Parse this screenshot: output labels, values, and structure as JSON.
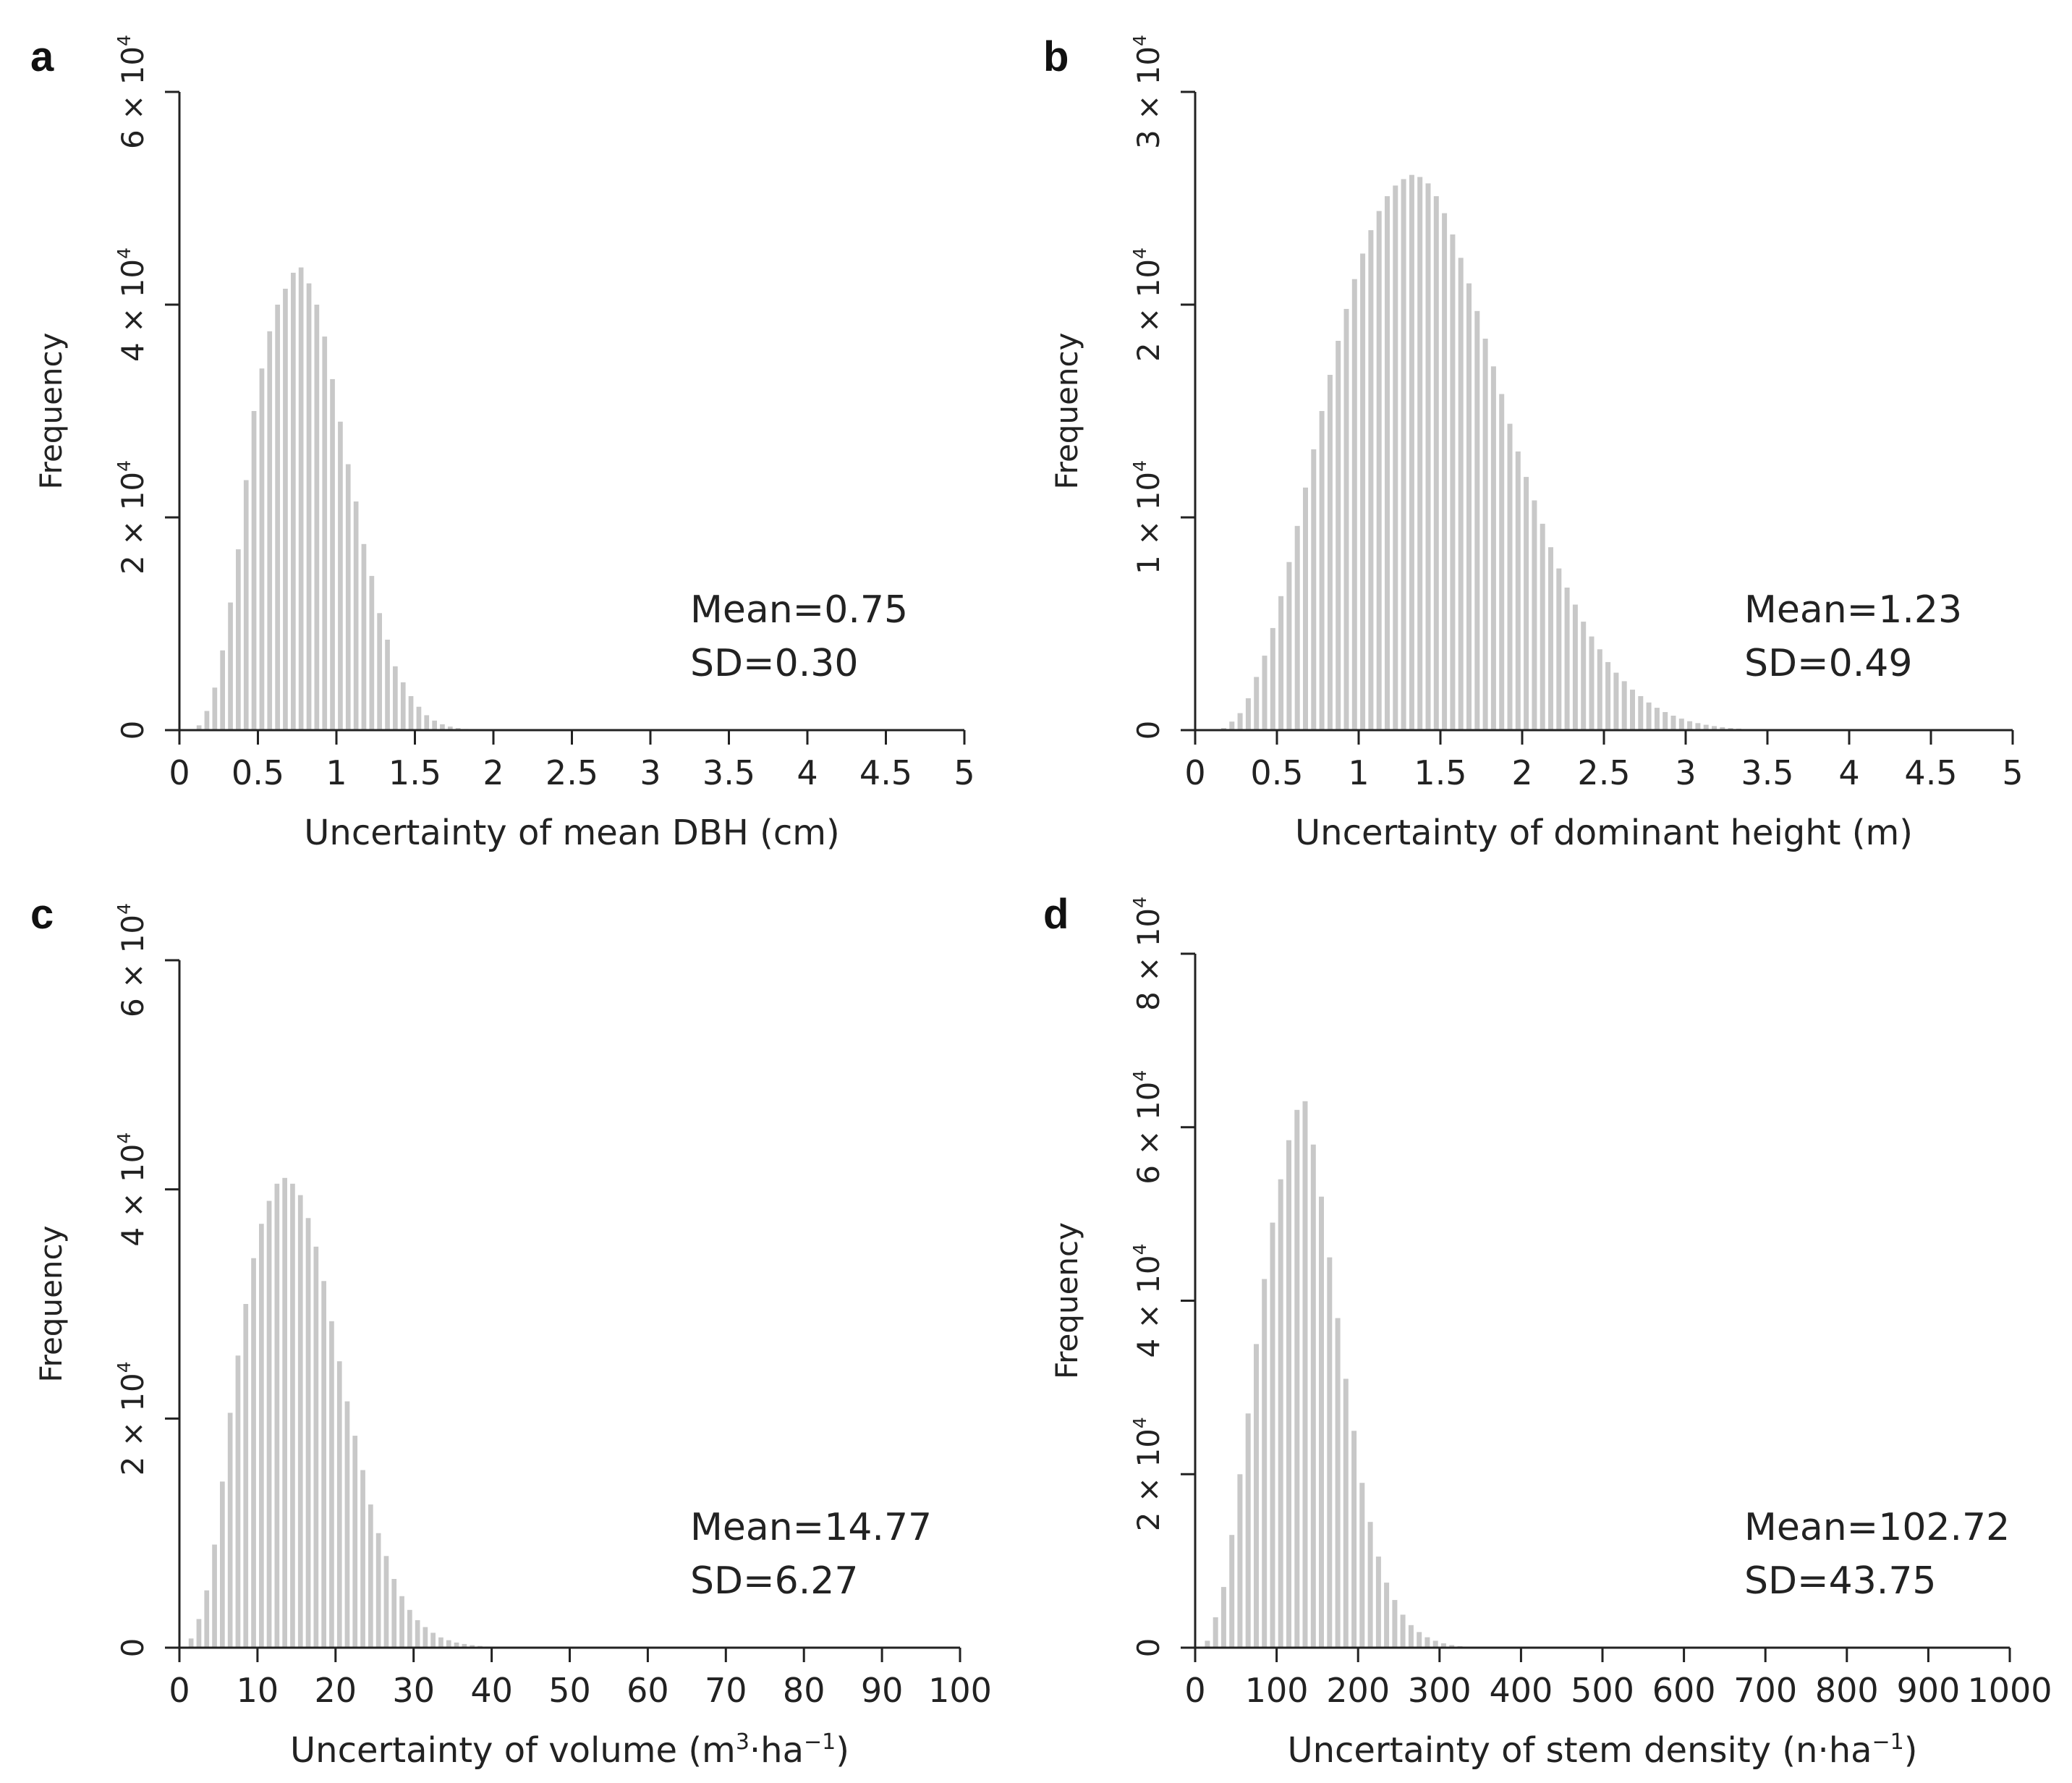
{
  "bar_color": "#c8c8c8",
  "axis_color": "#222222",
  "chart_data": [
    {
      "type": "bar",
      "panel": "a",
      "title": "",
      "xlabel": "Uncertainty of mean DBH (cm)",
      "ylabel": "Frequency",
      "xlim": [
        0,
        5
      ],
      "ylim": [
        0,
        60000
      ],
      "xticks": [
        "0",
        "0.5",
        "1",
        "1.5",
        "2",
        "2.5",
        "3",
        "3.5",
        "4",
        "4.5",
        "5"
      ],
      "xtick_values": [
        0,
        0.5,
        1,
        1.5,
        2,
        2.5,
        3,
        3.5,
        4,
        4.5,
        5
      ],
      "yticks": [
        {
          "value": 0,
          "base": "0",
          "exp": ""
        },
        {
          "value": 20000,
          "base": "2 × 10",
          "exp": "4"
        },
        {
          "value": 40000,
          "base": "4 × 10",
          "exp": "4"
        },
        {
          "value": 60000,
          "base": "6 × 10",
          "exp": "4"
        }
      ],
      "bin_start": 0.05,
      "bin_width": 0.05,
      "values": [
        80,
        450,
        1800,
        4000,
        7500,
        12000,
        17000,
        23500,
        30000,
        34000,
        37500,
        40000,
        41500,
        43000,
        43500,
        42000,
        40000,
        37000,
        33000,
        29000,
        25000,
        21500,
        17500,
        14500,
        11000,
        8500,
        6000,
        4500,
        3200,
        2200,
        1400,
        900,
        550,
        330,
        200,
        110,
        60,
        30,
        15,
        8
      ],
      "stats": {
        "mean": "Mean=0.75",
        "sd": "SD=0.30"
      }
    },
    {
      "type": "bar",
      "panel": "b",
      "title": "",
      "xlabel": "Uncertainty of dominant height (m)",
      "ylabel": "Frequency",
      "xlim": [
        0,
        5
      ],
      "ylim": [
        0,
        30000
      ],
      "xticks": [
        "0",
        "0.5",
        "1",
        "1.5",
        "2",
        "2.5",
        "3",
        "3.5",
        "4",
        "4.5",
        "5"
      ],
      "xtick_values": [
        0,
        0.5,
        1,
        1.5,
        2,
        2.5,
        3,
        3.5,
        4,
        4.5,
        5
      ],
      "yticks": [
        {
          "value": 0,
          "base": "0",
          "exp": ""
        },
        {
          "value": 10000,
          "base": "1 × 10",
          "exp": "4"
        },
        {
          "value": 20000,
          "base": "2 × 10",
          "exp": "4"
        },
        {
          "value": 30000,
          "base": "3 × 10",
          "exp": "4"
        }
      ],
      "bin_start": 0.15,
      "bin_width": 0.05,
      "values": [
        100,
        400,
        800,
        1500,
        2500,
        3500,
        4800,
        6300,
        7900,
        9600,
        11400,
        13200,
        15000,
        16700,
        18300,
        19800,
        21200,
        22400,
        23500,
        24400,
        25100,
        25600,
        25900,
        26100,
        26000,
        25700,
        25100,
        24300,
        23300,
        22200,
        21000,
        19700,
        18400,
        17100,
        15800,
        14400,
        13100,
        11900,
        10800,
        9700,
        8600,
        7600,
        6700,
        5900,
        5100,
        4400,
        3800,
        3200,
        2700,
        2300,
        1900,
        1600,
        1300,
        1050,
        850,
        680,
        540,
        420,
        330,
        250,
        190,
        140,
        100,
        70,
        50,
        30,
        20,
        10
      ],
      "stats": {
        "mean": "Mean=1.23",
        "sd": "SD=0.49"
      }
    },
    {
      "type": "bar",
      "panel": "c",
      "title": "",
      "xlabel": "Uncertainty of volume (m³·ha⁻¹)",
      "ylabel": "Frequency",
      "xlim": [
        0,
        100
      ],
      "ylim": [
        0,
        60000
      ],
      "xticks": [
        "0",
        "10",
        "20",
        "30",
        "40",
        "50",
        "60",
        "70",
        "80",
        "90",
        "100"
      ],
      "xtick_values": [
        0,
        10,
        20,
        30,
        40,
        50,
        60,
        70,
        80,
        90,
        100
      ],
      "yticks": [
        {
          "value": 0,
          "base": "0",
          "exp": ""
        },
        {
          "value": 20000,
          "base": "2 × 10",
          "exp": "4"
        },
        {
          "value": 40000,
          "base": "4 × 10",
          "exp": "4"
        },
        {
          "value": 60000,
          "base": "6 × 10",
          "exp": "4"
        }
      ],
      "bin_start": 1,
      "bin_width": 1,
      "values": [
        800,
        2500,
        5000,
        9000,
        14500,
        20500,
        25500,
        30000,
        34000,
        37000,
        39000,
        40500,
        41000,
        40500,
        39500,
        37500,
        35000,
        32000,
        28500,
        25000,
        21500,
        18500,
        15500,
        12500,
        10000,
        8000,
        6000,
        4500,
        3300,
        2400,
        1800,
        1300,
        900,
        650,
        450,
        320,
        220,
        150,
        100,
        70,
        45,
        30,
        20
      ],
      "stats": {
        "mean": "Mean=14.77",
        "sd": "SD=6.27"
      }
    },
    {
      "type": "bar",
      "panel": "d",
      "title": "",
      "xlabel": "Uncertainty of stem density (n·ha⁻¹)",
      "ylabel": "Frequency",
      "xlim": [
        0,
        1000
      ],
      "ylim": [
        0,
        80000
      ],
      "xticks": [
        "0",
        "100",
        "200",
        "300",
        "400",
        "500",
        "600",
        "700",
        "800",
        "900",
        "1000"
      ],
      "xtick_values": [
        0,
        100,
        200,
        300,
        400,
        500,
        600,
        700,
        800,
        900,
        1000
      ],
      "yticks": [
        {
          "value": 0,
          "base": "0",
          "exp": ""
        },
        {
          "value": 20000,
          "base": "2 × 10",
          "exp": "4"
        },
        {
          "value": 40000,
          "base": "4 × 10",
          "exp": "4"
        },
        {
          "value": 60000,
          "base": "6 × 10",
          "exp": "4"
        },
        {
          "value": 80000,
          "base": "8 × 10",
          "exp": "4"
        }
      ],
      "bin_start": 10,
      "bin_width": 10,
      "values": [
        800,
        3500,
        7000,
        13000,
        20000,
        27000,
        35000,
        42500,
        49000,
        54000,
        58500,
        62000,
        63000,
        58000,
        52000,
        45000,
        38000,
        31000,
        25000,
        19000,
        14500,
        10500,
        7500,
        5500,
        3800,
        2600,
        1800,
        1200,
        800,
        500,
        300,
        180,
        100,
        50,
        25
      ],
      "stats": {
        "mean": "Mean=102.72",
        "sd": "SD=43.75"
      }
    }
  ]
}
